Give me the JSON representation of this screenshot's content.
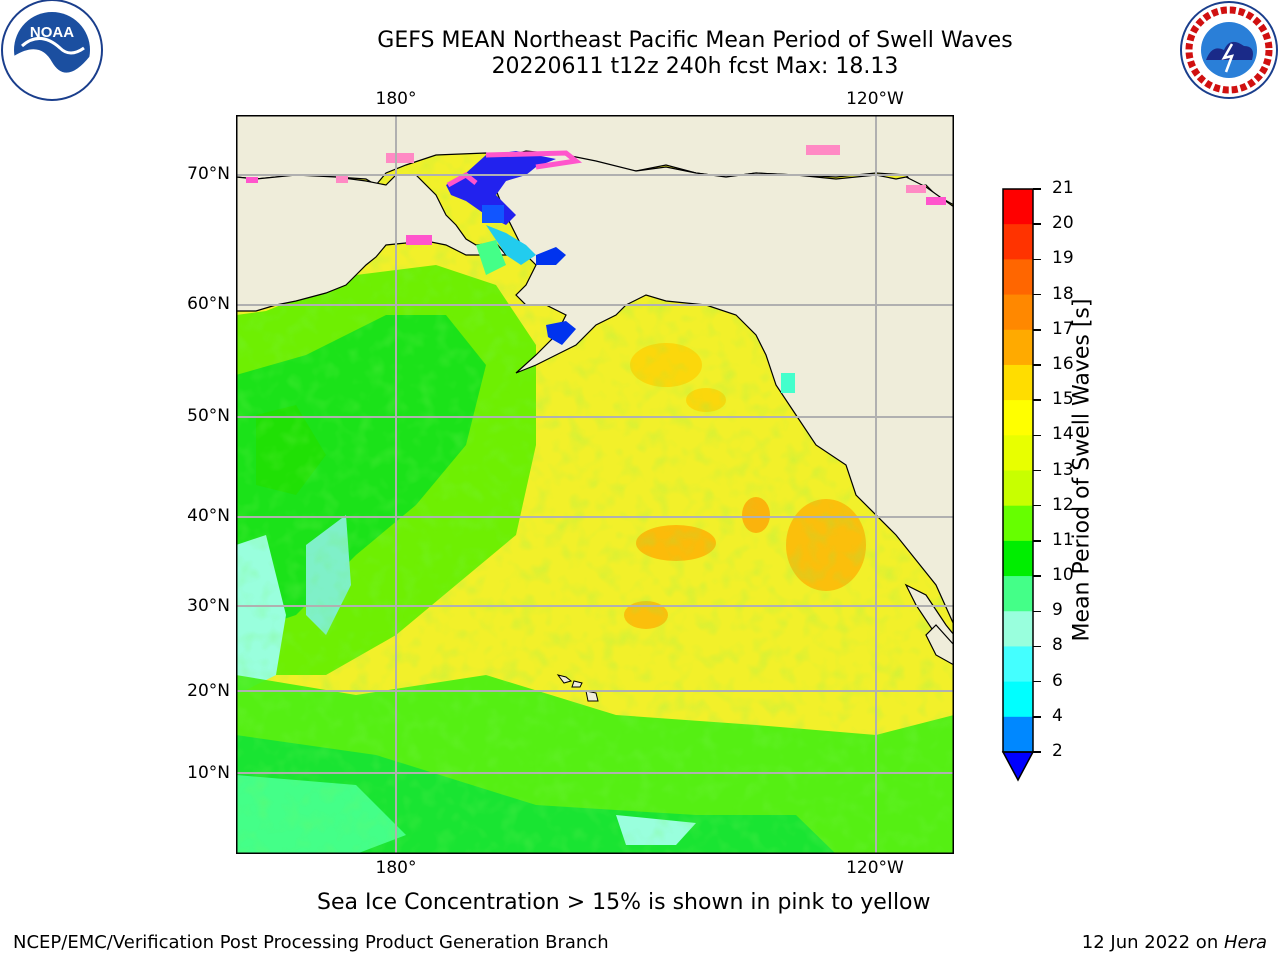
{
  "header": {
    "title_line1": "GEFS MEAN Northeast Pacific Mean Period of Swell Waves",
    "title_line2": "20220611 t12z 240h fcst   Max: 18.13"
  },
  "logos": {
    "left": {
      "icon": "noaa-logo-icon",
      "text": "NOAA"
    },
    "right": {
      "icon": "nws-logo-icon"
    }
  },
  "map": {
    "lon_labels_top": [
      "180°",
      "120°W"
    ],
    "lon_labels_bottom": [
      "180°",
      "120°W"
    ],
    "lat_labels": [
      "70°N",
      "60°N",
      "50°N",
      "40°N",
      "30°N",
      "20°N",
      "10°N"
    ],
    "colors": {
      "land": "#efedda",
      "ocean_yellow": "#f2f02a",
      "grid": "#b0b0b0"
    }
  },
  "colorbar": {
    "label": "Mean Period of Swell Waves [s]",
    "ticks": [
      "21",
      "20",
      "19",
      "18",
      "17",
      "16",
      "15",
      "14",
      "13",
      "12",
      "11",
      "10",
      "9",
      "8",
      "6",
      "4",
      "2"
    ],
    "colors": [
      "#ff0000",
      "#ff3300",
      "#ff6600",
      "#ff8800",
      "#ffaa00",
      "#ffdd00",
      "#ffff00",
      "#e8ff00",
      "#c8ff00",
      "#66ff00",
      "#00ee00",
      "#44ff88",
      "#99ffdd",
      "#44ffff",
      "#00ffff",
      "#0088ff"
    ],
    "under_color": "#0000ff"
  },
  "note": "Sea Ice Concentration > 15% is shown in pink to yellow",
  "footer": {
    "left": "NCEP/EMC/Verification Post Processing Product Generation Branch",
    "right_date": "12 Jun 2022 on ",
    "right_host": "Hera"
  }
}
